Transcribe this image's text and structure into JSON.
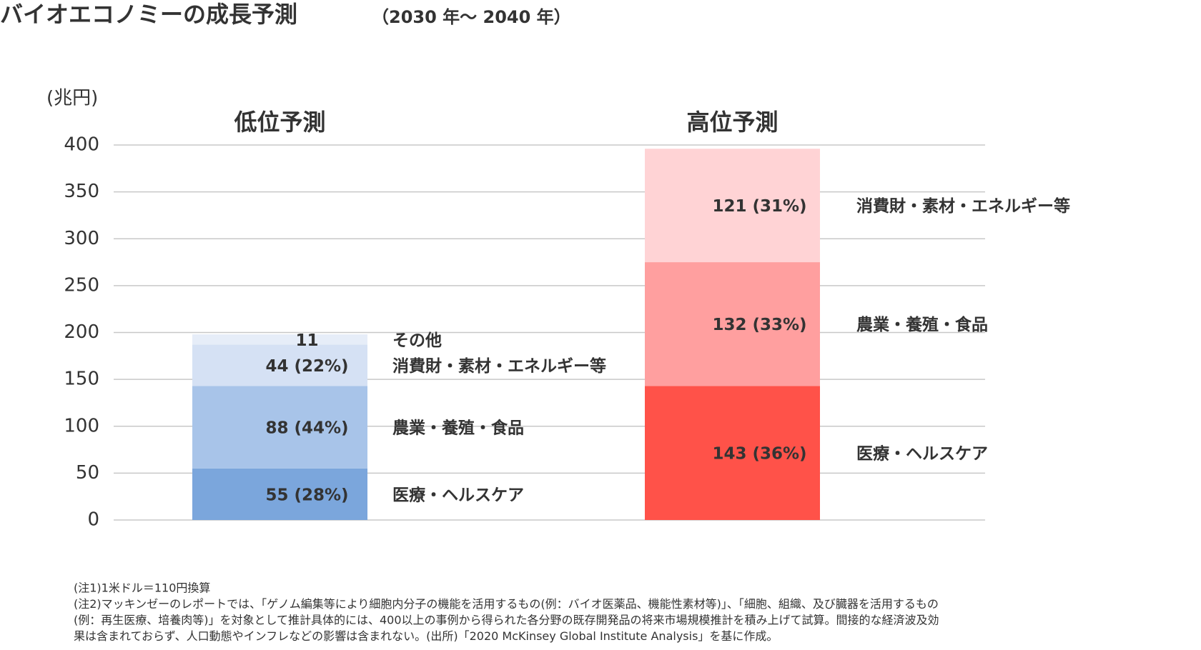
{
  "chart_data": {
    "type": "stacked_bar",
    "title": "バイオエコノミーの成長予測",
    "subtitle": "（2030 年～ 2040 年）",
    "y_label": "(兆円)",
    "categories": [
      "低位予測",
      "高位予測"
    ],
    "series": [
      {
        "name": "医療・ヘルスケア",
        "colors": [
          "#7ba6dc",
          "#ff5249"
        ],
        "values": [
          55,
          143
        ],
        "value_labels": [
          "55 (28%)",
          "143 (36%)"
        ]
      },
      {
        "name": "農業・養殖・食品",
        "colors": [
          "#a8c4e9",
          "#ff9f9f"
        ],
        "values": [
          88,
          132
        ],
        "value_labels": [
          "88 (44%)",
          "132 (33%)"
        ]
      },
      {
        "name": "消費財・素材・エネルギー等",
        "colors": [
          "#d5e1f4",
          "#ffd3d5"
        ],
        "values": [
          44,
          121
        ],
        "value_labels": [
          "44 (22%)",
          "121 (31%)"
        ]
      },
      {
        "name": "その他",
        "colors": [
          "#e6edf8",
          "#ffffff"
        ],
        "values": [
          11,
          null
        ],
        "value_labels": [
          "11",
          null
        ]
      }
    ],
    "ylim": [
      0,
      400
    ],
    "yticks": [
      0,
      50,
      100,
      150,
      200,
      250,
      300,
      350,
      400
    ],
    "grid": true,
    "notes": [
      "(注1)1米ドル＝110円換算",
      "(注2)マッキンゼーのレポートでは、「ゲノム編集等により細胞内分子の機能を活用するもの(例：バイオ医薬品、機能性素材等)」、「細胞、組織、及び臓器を活用するもの",
      "(例：再生医療、培養肉等)」を対象として推計具体的には、400以上の事例から得られた各分野の既存開発品の将来市場規模推計を積み上げて試算。間接的な経済波及効",
      "果は含まれておらず、人口動態やインフレなどの影響は含まれない。(出所)「2020 McKinsey Global Institute Analysis」を基に作成。"
    ]
  }
}
